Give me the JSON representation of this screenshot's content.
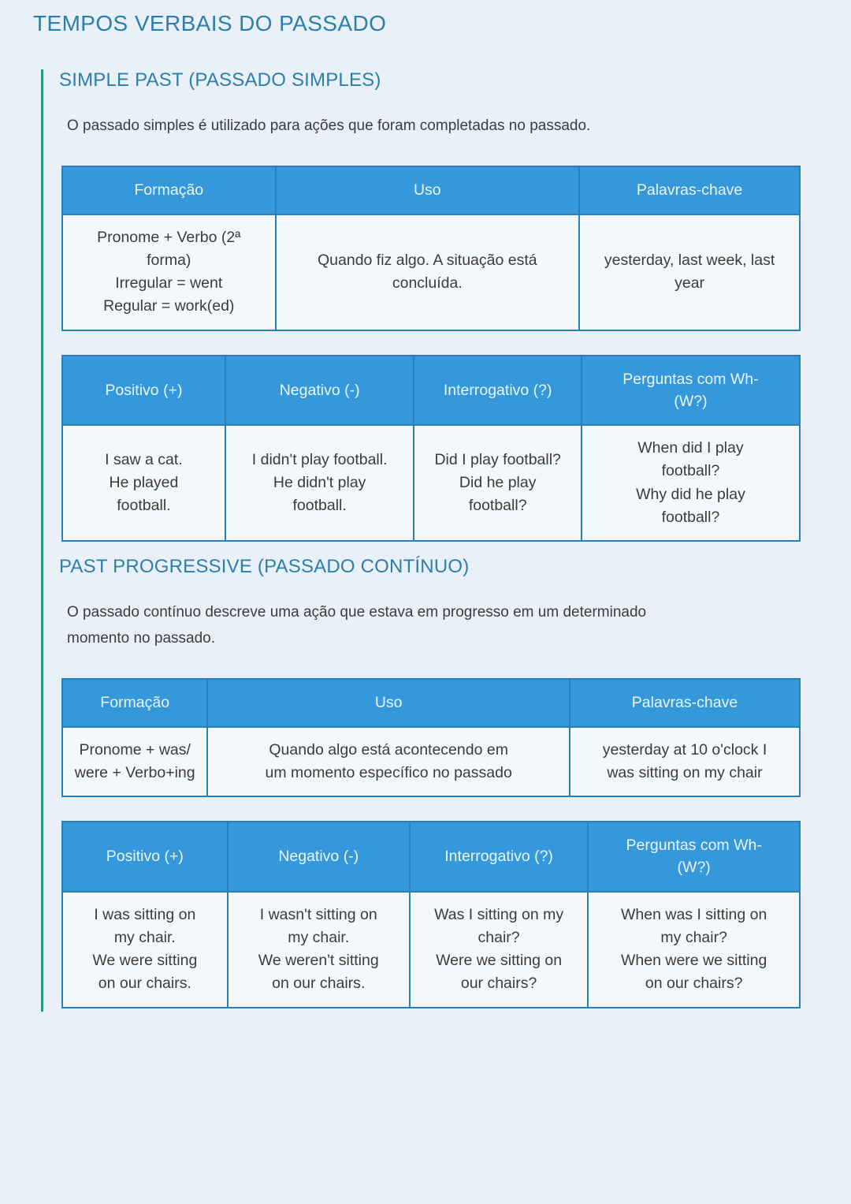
{
  "page": {
    "title": "TEMPOS VERBAIS DO PASSADO",
    "colors": {
      "background": "#e9f0f8",
      "heading": "#2b7fad",
      "table_header_bg": "#3498db",
      "table_border": "#2980b9",
      "cell_bg": "#f4f8fb",
      "body_text": "#3c3c3c",
      "accent_rail": "#2f9287"
    }
  },
  "sections": [
    {
      "heading": "SIMPLE PAST (PASSADO SIMPLES)",
      "intro": "O passado simples é utilizado para ações que foram completadas no passado.",
      "formation_table": {
        "headers": [
          "Formação",
          "Uso",
          "Palavras-chave"
        ],
        "row": [
          "Pronome + Verbo (2ª\nforma)\nIrregular = went\nRegular = work(ed)",
          "Quando fiz algo. A situação está\nconcluída.",
          "yesterday, last week, last\nyear"
        ]
      },
      "forms_table": {
        "headers": [
          "Positivo (+)",
          "Negativo (-)",
          "Interrogativo (?)",
          "Perguntas com Wh-\n(W?)"
        ],
        "row": [
          "I saw a cat.\nHe played\nfootball.",
          "I didn't play football.\nHe didn't play\nfootball.",
          "Did I play football?\nDid he play\nfootball?",
          "When did I play\nfootball?\nWhy did he play\nfootball?"
        ]
      }
    },
    {
      "heading": "PAST PROGRESSIVE (PASSADO CONTÍNUO)",
      "intro": "O passado contínuo descreve uma ação que estava em progresso em um determinado\nmomento no passado.",
      "formation_table": {
        "headers": [
          "Formação",
          "Uso",
          "Palavras-chave"
        ],
        "row": [
          "Pronome + was/\nwere + Verbo+ing",
          "Quando algo está acontecendo em\num momento específico no passado",
          "yesterday at 10 o'clock I\nwas sitting on my chair"
        ]
      },
      "forms_table": {
        "headers": [
          "Positivo (+)",
          "Negativo (-)",
          "Interrogativo (?)",
          "Perguntas com Wh-\n(W?)"
        ],
        "row": [
          "I was sitting on\nmy chair.\nWe were sitting\non our chairs.",
          "I wasn't sitting on\nmy chair.\nWe weren't sitting\non our chairs.",
          "Was I sitting on my\nchair?\nWere we sitting on\nour chairs?",
          "When was I sitting on\nmy chair?\nWhen were we sitting\non our chairs?"
        ]
      }
    }
  ]
}
